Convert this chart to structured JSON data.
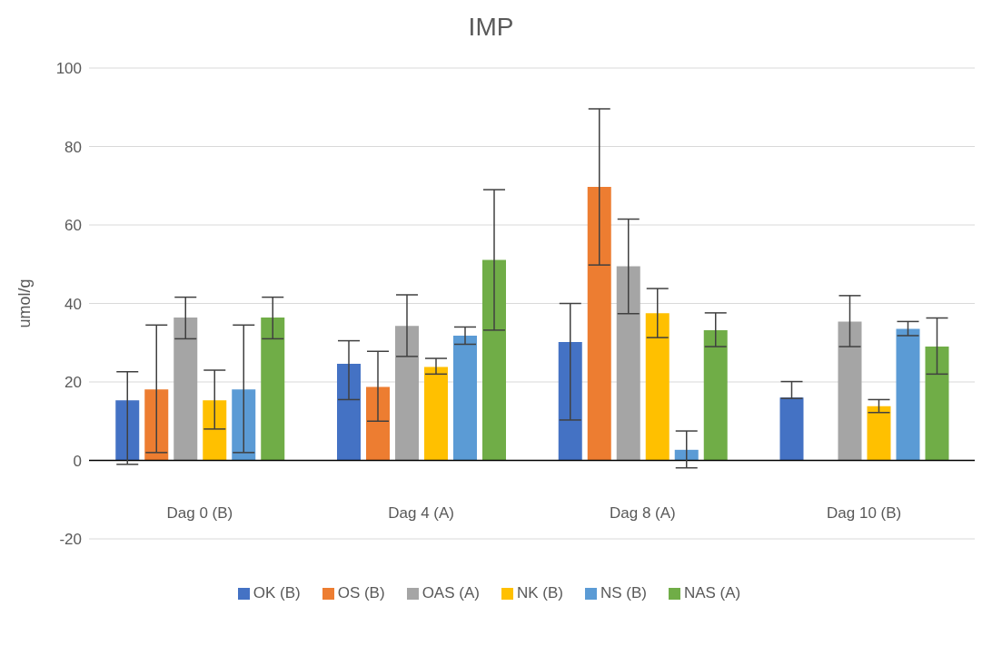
{
  "chart_data": {
    "type": "bar",
    "title": "IMP",
    "ylabel": "umol/g",
    "categories": [
      "Dag 0 (B)",
      "Dag 4 (A)",
      "Dag 8 (A)",
      "Dag 10 (B)"
    ],
    "series": [
      {
        "name": "OK (B)",
        "color": "#4472c4",
        "values": [
          15.3,
          24.6,
          30.2,
          16.0
        ],
        "errors": [
          [
            -1,
            22.6
          ],
          [
            15.5,
            30.5
          ],
          [
            10.3,
            40
          ],
          [
            15.8,
            20.1
          ]
        ]
      },
      {
        "name": "OS (B)",
        "color": "#ed7d31",
        "values": [
          18.1,
          18.7,
          69.7,
          0
        ],
        "errors": [
          [
            2,
            34.5
          ],
          [
            10,
            27.8
          ],
          [
            49.8,
            89.6
          ],
          null
        ]
      },
      {
        "name": "OAS (A)",
        "color": "#a5a5a5",
        "values": [
          36.4,
          34.3,
          49.5,
          35.4
        ],
        "errors": [
          [
            31,
            41.6
          ],
          [
            26.5,
            42.2
          ],
          [
            37.4,
            61.5
          ],
          [
            29,
            42
          ]
        ]
      },
      {
        "name": "NK (B)",
        "color": "#ffc000",
        "values": [
          15.3,
          23.8,
          37.5,
          13.8
        ],
        "errors": [
          [
            8,
            23
          ],
          [
            22,
            26
          ],
          [
            31.3,
            43.8
          ],
          [
            12.2,
            15.5
          ]
        ]
      },
      {
        "name": "NS (B)",
        "color": "#5b9bd5",
        "values": [
          18.1,
          31.8,
          2.7,
          33.5
        ],
        "errors": [
          [
            2,
            34.5
          ],
          [
            29.6,
            34
          ],
          [
            -1.9,
            7.5
          ],
          [
            31.8,
            35.4
          ]
        ]
      },
      {
        "name": "NAS (A)",
        "color": "#70ad47",
        "values": [
          36.4,
          51.1,
          33.2,
          29
        ],
        "errors": [
          [
            31,
            41.6
          ],
          [
            33.2,
            69
          ],
          [
            29,
            37.6
          ],
          [
            22,
            36.3
          ]
        ]
      }
    ],
    "ylim": [
      -20,
      100
    ],
    "yticks": [
      -20,
      0,
      20,
      40,
      60,
      80,
      100
    ],
    "grid": "y",
    "legend": "bottom"
  }
}
